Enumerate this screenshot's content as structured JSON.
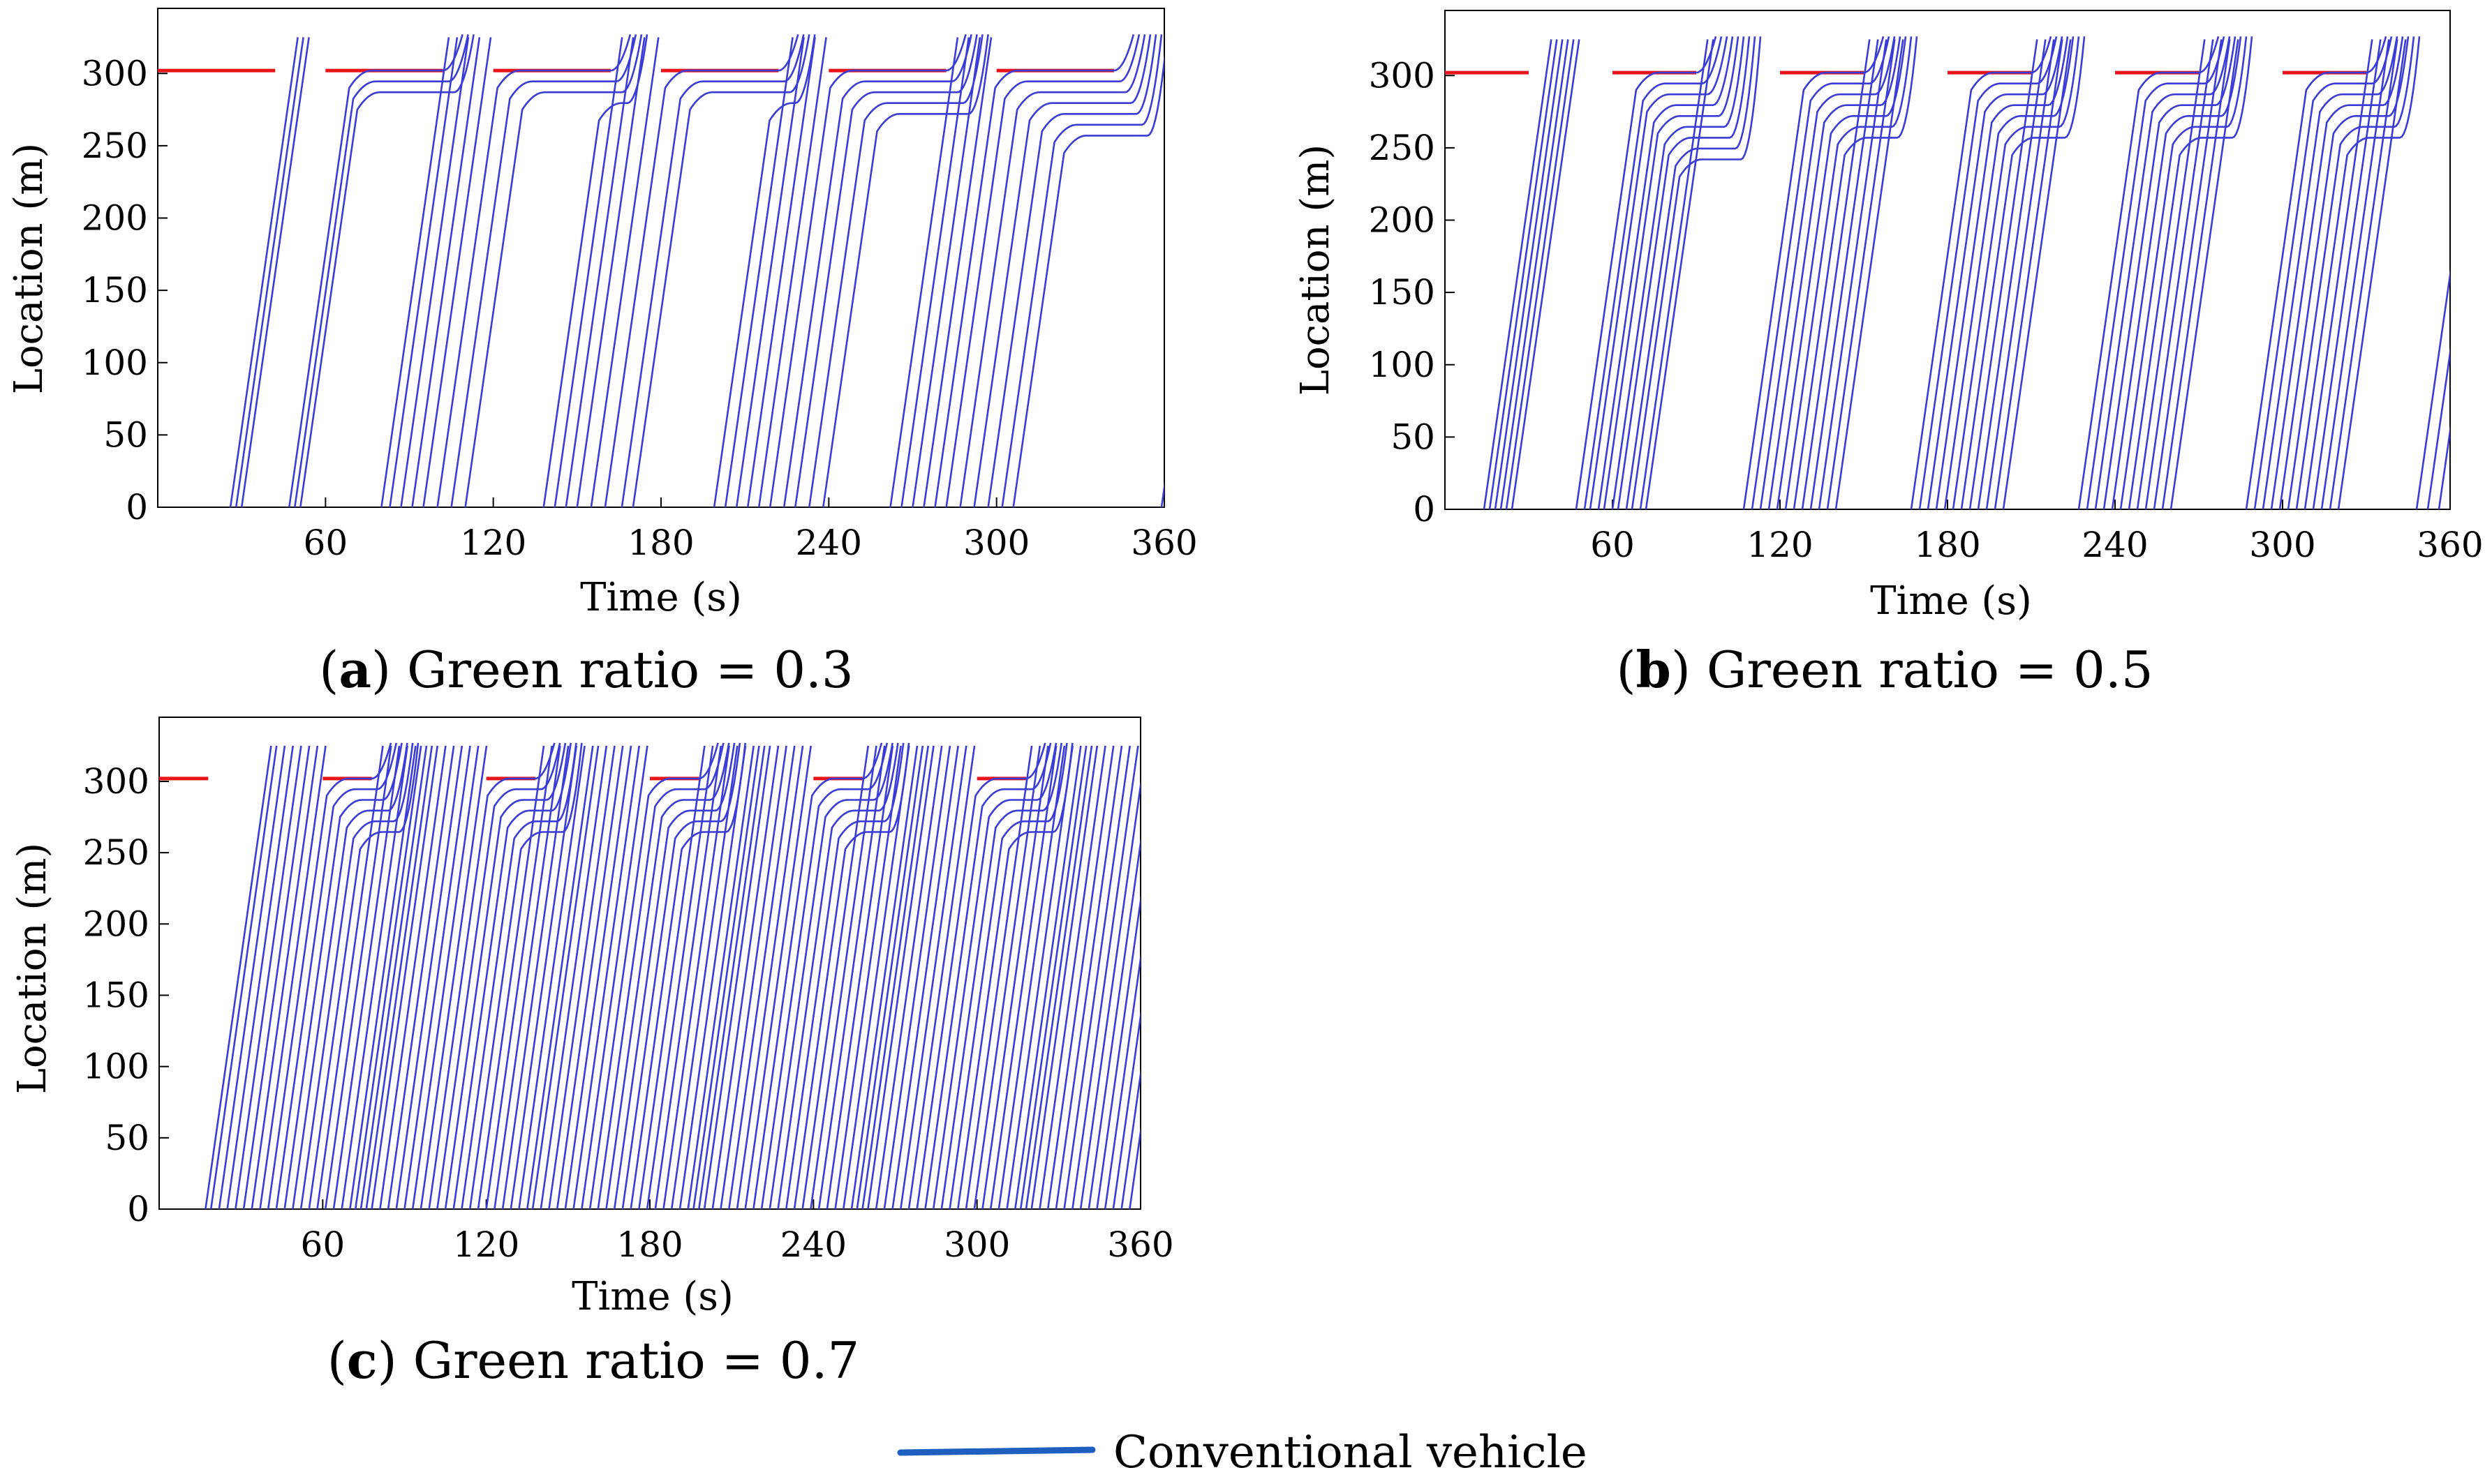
{
  "chart_data": [
    {
      "type": "line",
      "panel": "a",
      "caption_open": "(",
      "caption_letter": "a",
      "caption_text": ") Green ratio =  0.3",
      "green_ratio": 0.3,
      "xlabel": "Time (s)",
      "ylabel": "Location (m)",
      "xlim": [
        0,
        360
      ],
      "ylim": [
        0,
        345
      ],
      "xticks": [
        60,
        120,
        180,
        240,
        300,
        360
      ],
      "yticks": [
        0,
        50,
        100,
        150,
        200,
        250,
        300
      ],
      "signal_location": 302,
      "trajectory_end": 325,
      "vehicle_speed": 13.5,
      "cycle_length": 60,
      "red_phases": [
        [
          0,
          42
        ],
        [
          60,
          102
        ],
        [
          120,
          162
        ],
        [
          180,
          222
        ],
        [
          240,
          282
        ],
        [
          300,
          342
        ]
      ],
      "vehicle_entry_times": [
        26,
        28,
        30,
        47,
        49,
        51,
        80,
        83,
        87,
        91,
        95,
        100,
        105,
        110,
        138,
        142,
        146,
        150,
        155,
        160,
        166,
        170,
        199,
        203,
        207,
        211,
        215,
        219,
        224,
        228,
        233,
        238,
        262,
        266,
        270,
        274,
        278,
        282,
        287,
        292,
        297,
        302,
        306,
        359
      ]
    },
    {
      "type": "line",
      "panel": "b",
      "caption_open": "(",
      "caption_letter": "b",
      "caption_text": ") Green ratio =  0.5",
      "green_ratio": 0.5,
      "xlabel": "Time (s)",
      "ylabel": "Location (m)",
      "xlim": [
        0,
        360
      ],
      "ylim": [
        0,
        345
      ],
      "xticks": [
        60,
        120,
        180,
        240,
        300,
        360
      ],
      "yticks": [
        0,
        50,
        100,
        150,
        200,
        250,
        300
      ],
      "signal_location": 302,
      "trajectory_end": 325,
      "vehicle_speed": 13.5,
      "cycle_length": 60,
      "red_phases": [
        [
          0,
          30
        ],
        [
          60,
          90
        ],
        [
          120,
          150
        ],
        [
          180,
          210
        ],
        [
          240,
          270
        ],
        [
          300,
          330
        ]
      ],
      "vehicle_entry_times": [
        14,
        16,
        18,
        20,
        22,
        24,
        47,
        50,
        52,
        55,
        57,
        60,
        62,
        65,
        67,
        70,
        72,
        107,
        110,
        113,
        116,
        119,
        122,
        125,
        128,
        131,
        134,
        137,
        140,
        167,
        170,
        173,
        176,
        179,
        182,
        185,
        188,
        191,
        194,
        197,
        200,
        227,
        230,
        233,
        236,
        239,
        242,
        245,
        248,
        251,
        254,
        257,
        260,
        287,
        290,
        293,
        296,
        299,
        302,
        305,
        308,
        311,
        314,
        317,
        320,
        348,
        352,
        356
      ]
    },
    {
      "type": "line",
      "panel": "c",
      "caption_open": "(",
      "caption_letter": "c",
      "caption_text": ") Green ratio =  0.7",
      "green_ratio": 0.7,
      "xlabel": "Time (s)",
      "ylabel": "Location (m)",
      "xlim": [
        0,
        360
      ],
      "ylim": [
        0,
        345
      ],
      "xticks": [
        60,
        120,
        180,
        240,
        300,
        360
      ],
      "yticks": [
        0,
        50,
        100,
        150,
        200,
        250,
        300
      ],
      "signal_location": 302,
      "trajectory_end": 325,
      "vehicle_speed": 13.5,
      "cycle_length": 60,
      "red_phases": [
        [
          0,
          18
        ],
        [
          60,
          78
        ],
        [
          120,
          138
        ],
        [
          180,
          198
        ],
        [
          240,
          258
        ],
        [
          300,
          318
        ]
      ],
      "vehicle_entry_times": [
        17,
        19,
        22,
        25,
        28,
        31,
        34,
        37,
        40,
        43,
        46,
        49,
        52,
        55,
        58,
        61,
        64,
        67,
        70,
        72,
        74,
        76,
        78,
        81,
        84,
        87,
        90,
        93,
        96,
        99,
        102,
        105,
        108,
        111,
        114,
        117,
        120,
        123,
        126,
        129,
        132,
        135,
        137,
        140,
        143,
        146,
        149,
        152,
        155,
        158,
        161,
        164,
        167,
        170,
        173,
        176,
        179,
        182,
        185,
        188,
        191,
        194,
        196,
        198,
        200,
        203,
        206,
        209,
        212,
        215,
        218,
        221,
        224,
        227,
        230,
        233,
        236,
        239,
        242,
        245,
        248,
        251,
        254,
        256,
        258,
        260,
        263,
        266,
        269,
        272,
        275,
        278,
        281,
        284,
        287,
        290,
        293,
        296,
        299,
        302,
        305,
        308,
        311,
        314,
        316,
        318,
        320,
        323,
        326,
        329,
        332,
        335,
        338,
        341,
        344,
        347,
        350,
        353,
        356
      ]
    }
  ],
  "legend": {
    "label": "Conventional vehicle",
    "color": "#1f5fbf"
  },
  "colors": {
    "trajectory": "#3b3bd6",
    "signal_red": "#e8141a",
    "axis": "#000000"
  }
}
